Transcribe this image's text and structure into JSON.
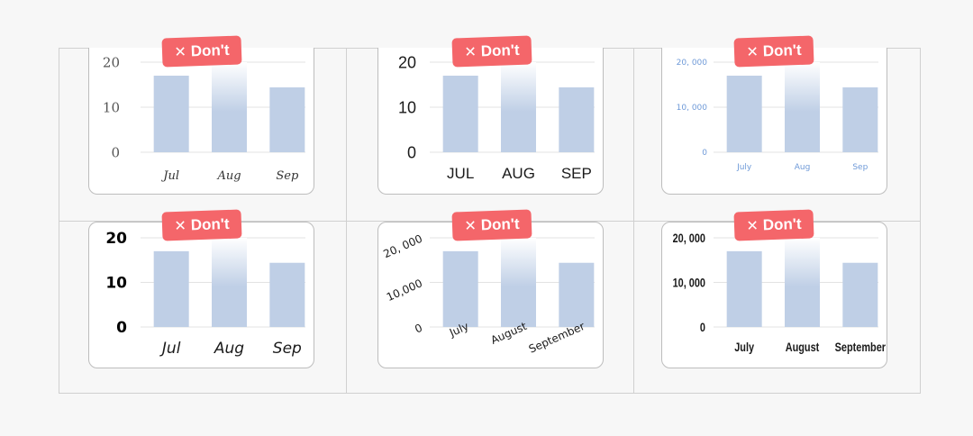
{
  "badge": {
    "icon": "close-icon",
    "x_glyph": "✕",
    "label": "Don't",
    "color": "#f4666a"
  },
  "colors": {
    "bar": "#bfcfe6",
    "bar_fade_top": "#ffffff",
    "grid": "#e3e3e3",
    "tick_blue": "#6f9ad8",
    "text": "#1a1a1a"
  },
  "chart_data": [
    {
      "type": "bar",
      "variant": "script-font",
      "categories": [
        "Jul",
        "Aug",
        "Sep"
      ],
      "values": [
        17,
        20,
        14.4
      ],
      "yticks": [
        "0",
        "10",
        "20"
      ],
      "ylim": [
        0,
        20
      ],
      "grid": true
    },
    {
      "type": "bar",
      "variant": "uppercase",
      "categories": [
        "JUL",
        "AUG",
        "SEP"
      ],
      "values": [
        17,
        20,
        14.4
      ],
      "yticks": [
        "0",
        "10",
        "20"
      ],
      "ylim": [
        0,
        20
      ],
      "grid": true
    },
    {
      "type": "bar",
      "variant": "tiny-light",
      "categories": [
        "July",
        "Aug",
        "Sep"
      ],
      "values": [
        17000,
        20000,
        14400
      ],
      "yticks": [
        "0",
        "10, 000",
        "20, 000"
      ],
      "ylim": [
        0,
        20000
      ],
      "grid": true
    },
    {
      "type": "bar",
      "variant": "heavy-italic",
      "categories": [
        "Jul",
        "Aug",
        "Sep"
      ],
      "values": [
        17,
        20,
        14.4
      ],
      "yticks": [
        "0",
        "10",
        "20"
      ],
      "ylim": [
        0,
        20
      ],
      "grid": true
    },
    {
      "type": "bar",
      "variant": "rotated",
      "categories": [
        "July",
        "August",
        "September"
      ],
      "values": [
        17000,
        20000,
        14400
      ],
      "yticks": [
        "0",
        "10,000",
        "20, 000"
      ],
      "ylim": [
        0,
        20000
      ],
      "grid": true
    },
    {
      "type": "bar",
      "variant": "condensed",
      "categories": [
        "July",
        "August",
        "September"
      ],
      "values": [
        17000,
        20000,
        14400
      ],
      "yticks": [
        "0",
        "10, 000",
        "20, 000"
      ],
      "ylim": [
        0,
        20000
      ],
      "grid": true
    }
  ]
}
